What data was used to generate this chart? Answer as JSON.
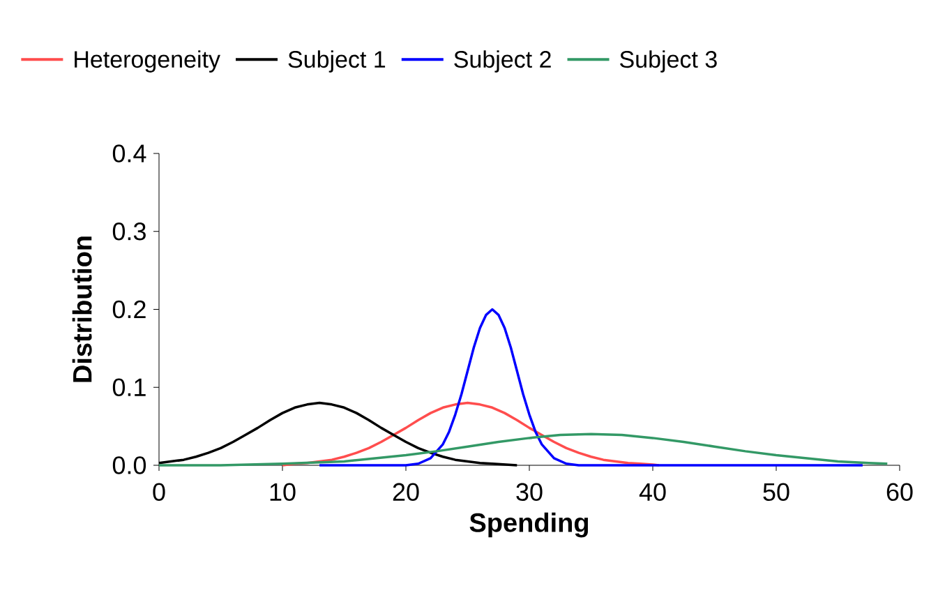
{
  "chart_data": {
    "type": "line",
    "xlabel": "Spending",
    "ylabel": "Distribution",
    "xlim": [
      0,
      60
    ],
    "ylim": [
      0,
      0.4
    ],
    "xticks": [
      0,
      10,
      20,
      30,
      40,
      50,
      60
    ],
    "yticks": [
      {
        "value": 0,
        "label": "0.0"
      },
      {
        "value": 0.1,
        "label": "0.1"
      },
      {
        "value": 0.2,
        "label": "0.2"
      },
      {
        "value": 0.3,
        "label": "0.3"
      },
      {
        "value": 0.4,
        "label": "0.4"
      }
    ],
    "grid": false,
    "legend": "top",
    "marker": "none",
    "line_style": "solid",
    "series": [
      {
        "name": "Heterogeneity",
        "color": "#ff4d4d",
        "x": [
          10,
          11,
          12,
          13,
          14,
          15,
          16,
          17,
          18,
          19,
          20,
          21,
          22,
          23,
          24,
          25,
          26,
          27,
          28,
          29,
          30,
          31,
          32,
          33,
          34,
          35,
          36,
          37,
          38,
          39,
          40,
          40.5
        ],
        "values": [
          0,
          0.002,
          0.003,
          0.005,
          0.007,
          0.011,
          0.016,
          0.022,
          0.03,
          0.039,
          0.048,
          0.058,
          0.067,
          0.074,
          0.078,
          0.08,
          0.078,
          0.074,
          0.067,
          0.058,
          0.048,
          0.039,
          0.03,
          0.022,
          0.016,
          0.011,
          0.007,
          0.005,
          0.003,
          0.002,
          0.001,
          0
        ]
      },
      {
        "name": "Subject 1",
        "color": "#000000",
        "x": [
          0,
          1,
          2,
          3,
          4,
          5,
          6,
          7,
          8,
          9,
          10,
          11,
          12,
          13,
          14,
          15,
          16,
          17,
          18,
          19,
          20,
          21,
          22,
          23,
          24,
          25,
          26,
          27,
          28,
          29
        ],
        "values": [
          0.003,
          0.005,
          0.007,
          0.011,
          0.016,
          0.022,
          0.03,
          0.039,
          0.048,
          0.058,
          0.067,
          0.074,
          0.078,
          0.08,
          0.078,
          0.074,
          0.067,
          0.058,
          0.048,
          0.039,
          0.03,
          0.022,
          0.016,
          0.011,
          0.007,
          0.005,
          0.003,
          0.002,
          0.001,
          0
        ]
      },
      {
        "name": "Subject 2",
        "color": "#0000ff",
        "x": [
          13,
          20,
          21,
          22,
          23,
          23.5,
          24,
          24.5,
          25,
          25.5,
          26,
          26.5,
          27,
          27.5,
          28,
          28.5,
          29,
          29.5,
          30,
          30.5,
          31,
          32,
          33,
          34,
          57
        ],
        "values": [
          0,
          0,
          0.002,
          0.009,
          0.027,
          0.043,
          0.065,
          0.091,
          0.121,
          0.151,
          0.176,
          0.193,
          0.2,
          0.193,
          0.176,
          0.151,
          0.121,
          0.091,
          0.065,
          0.043,
          0.027,
          0.009,
          0.002,
          0,
          0
        ]
      },
      {
        "name": "Subject 3",
        "color": "#339966",
        "x": [
          0,
          5,
          10,
          15,
          17.5,
          20,
          22.5,
          25,
          27.5,
          30,
          32.5,
          35,
          37.5,
          40,
          42.5,
          45,
          47.5,
          50,
          52.5,
          55,
          57.5,
          59
        ],
        "values": [
          0,
          0,
          0.002,
          0.005,
          0.009,
          0.013,
          0.018,
          0.024,
          0.03,
          0.035,
          0.039,
          0.04,
          0.039,
          0.035,
          0.03,
          0.024,
          0.018,
          0.013,
          0.009,
          0.005,
          0.003,
          0.002
        ]
      }
    ]
  }
}
